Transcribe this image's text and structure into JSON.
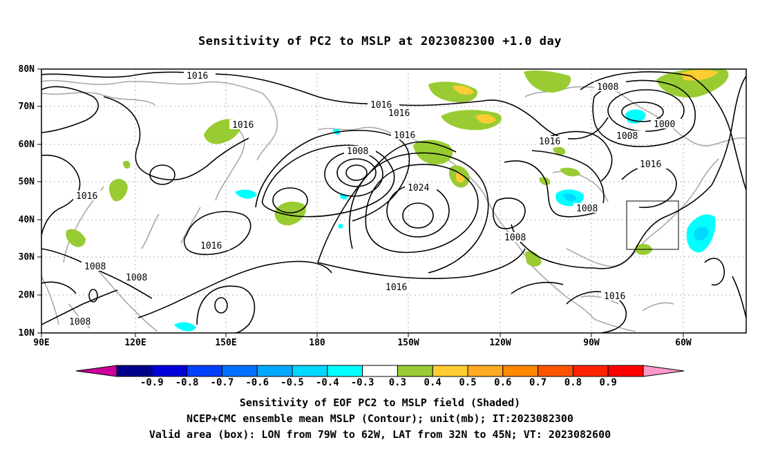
{
  "title": "Sensitivity of PC2 to MSLP at 2023082300 +1.0 day",
  "map": {
    "lat_labels": [
      "80N",
      "70N",
      "60N",
      "50N",
      "40N",
      "30N",
      "20N",
      "10N"
    ],
    "lon_labels": [
      "90E",
      "120E",
      "150E",
      "180",
      "150W",
      "120W",
      "90W",
      "60W"
    ],
    "contour_labels": [
      "1016",
      "1016",
      "1016",
      "1016",
      "1016",
      "1016",
      "1016",
      "1016",
      "1016",
      "1016",
      "1016",
      "1008",
      "1008",
      "1008",
      "1008",
      "1008",
      "1008",
      "1008",
      "1008",
      "1000",
      "1024"
    ],
    "valid_box": {
      "lon_from": "79W",
      "lon_to": "62W",
      "lat_from": "32N",
      "lat_to": "45N"
    }
  },
  "colorbar": {
    "labels": [
      "-0.9",
      "-0.8",
      "-0.7",
      "-0.6",
      "-0.5",
      "-0.4",
      "-0.3",
      "0.3",
      "0.4",
      "0.5",
      "0.6",
      "0.7",
      "0.8",
      "0.9"
    ],
    "colors": [
      "#00008b",
      "#0000d8",
      "#0040ff",
      "#0070ff",
      "#00a8ff",
      "#00d8ff",
      "#00ffff",
      "#ffffff",
      "#99cc33",
      "#ffcc33",
      "#ffaa22",
      "#ff8800",
      "#ff5500",
      "#ff2200",
      "#ff0000"
    ],
    "low_end_color": "#cc0099",
    "high_end_color": "#ff99cc"
  },
  "caption": {
    "line1": "Sensitivity of EOF PC2 to MSLP field (Shaded)",
    "line2": "NCEP+CMC ensemble mean MSLP (Contour); unit(mb); IT:2023082300",
    "line3": "Valid area (box): LON from 79W to 62W, LAT from 32N to 45N; VT: 2023082600"
  }
}
